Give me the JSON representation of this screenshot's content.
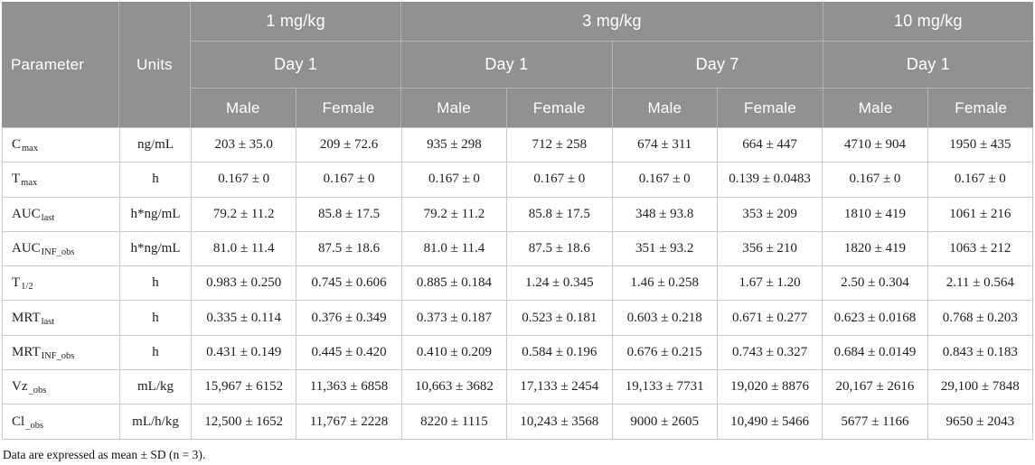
{
  "header": {
    "parameter_label": "Parameter",
    "units_label": "Units",
    "dose_groups": [
      {
        "label": "1 mg/kg",
        "days": [
          {
            "label": "Day 1",
            "sexes": [
              "Male",
              "Female"
            ]
          }
        ]
      },
      {
        "label": "3 mg/kg",
        "days": [
          {
            "label": "Day 1",
            "sexes": [
              "Male",
              "Female"
            ]
          },
          {
            "label": "Day 7",
            "sexes": [
              "Male",
              "Female"
            ]
          }
        ]
      },
      {
        "label": "10 mg/kg",
        "days": [
          {
            "label": "Day 1",
            "sexes": [
              "Male",
              "Female"
            ]
          }
        ]
      }
    ]
  },
  "rows": [
    {
      "param_base": "C",
      "param_sub": "max",
      "units": "ng/mL",
      "values": [
        "203 ± 35.0",
        "209 ± 72.6",
        "935 ± 298",
        "712 ± 258",
        "674 ± 311",
        "664 ± 447",
        "4710 ± 904",
        "1950 ± 435"
      ]
    },
    {
      "param_base": "T",
      "param_sub": "max",
      "units": "h",
      "values": [
        "0.167 ± 0",
        "0.167 ± 0",
        "0.167 ± 0",
        "0.167 ± 0",
        "0.167 ± 0",
        "0.139 ± 0.0483",
        "0.167 ± 0",
        "0.167 ± 0"
      ]
    },
    {
      "param_base": "AUC",
      "param_sub": "last",
      "units": "h*ng/mL",
      "values": [
        "79.2 ± 11.2",
        "85.8 ± 17.5",
        "79.2 ± 11.2",
        "85.8 ± 17.5",
        "348 ± 93.8",
        "353 ± 209",
        "1810 ± 419",
        "1061 ± 216"
      ]
    },
    {
      "param_base": "AUC",
      "param_sub": "INF_obs",
      "units": "h*ng/mL",
      "values": [
        "81.0 ± 11.4",
        "87.5 ± 18.6",
        "81.0 ± 11.4",
        "87.5 ± 18.6",
        "351 ± 93.2",
        "356 ± 210",
        "1820 ± 419",
        "1063 ± 212"
      ]
    },
    {
      "param_base": "T",
      "param_sub": "1/2",
      "units": "h",
      "values": [
        "0.983 ± 0.250",
        "0.745 ± 0.606",
        "0.885 ± 0.184",
        "1.24 ± 0.345",
        "1.46 ± 0.258",
        "1.67 ± 1.20",
        "2.50 ± 0.304",
        "2.11 ± 0.564"
      ]
    },
    {
      "param_base": "MRT",
      "param_sub": "last",
      "units": "h",
      "values": [
        "0.335 ± 0.114",
        "0.376 ± 0.349",
        "0.373 ± 0.187",
        "0.523 ± 0.181",
        "0.603 ± 0.218",
        "0.671 ± 0.277",
        "0.623 ± 0.0168",
        "0.768 ± 0.203"
      ]
    },
    {
      "param_base": "MRT",
      "param_sub": "INF_obs",
      "units": "h",
      "values": [
        "0.431 ± 0.149",
        "0.445 ± 0.420",
        "0.410 ± 0.209",
        "0.584 ± 0.196",
        "0.676 ± 0.215",
        "0.743 ± 0.327",
        "0.684 ± 0.0149",
        "0.843 ± 0.183"
      ]
    },
    {
      "param_base": "Vz",
      "param_sub": "_obs",
      "units": "mL/kg",
      "values": [
        "15,967 ± 6152",
        "11,363 ± 6858",
        "10,663 ± 3682",
        "17,133 ± 2454",
        "19,133 ± 7731",
        "19,020 ± 8876",
        "20,167 ± 2616",
        "29,100 ± 7848"
      ]
    },
    {
      "param_base": "Cl",
      "param_sub": "_obs",
      "units": "mL/h/kg",
      "values": [
        "12,500 ± 1652",
        "11,767 ± 2228",
        "8220 ± 1115",
        "10,243 ± 3568",
        "9000 ± 2605",
        "10,490 ± 5466",
        "5677 ± 1166",
        "9650 ± 2043"
      ]
    }
  ],
  "footnote": "Data are expressed as mean ± SD (n = 3)."
}
